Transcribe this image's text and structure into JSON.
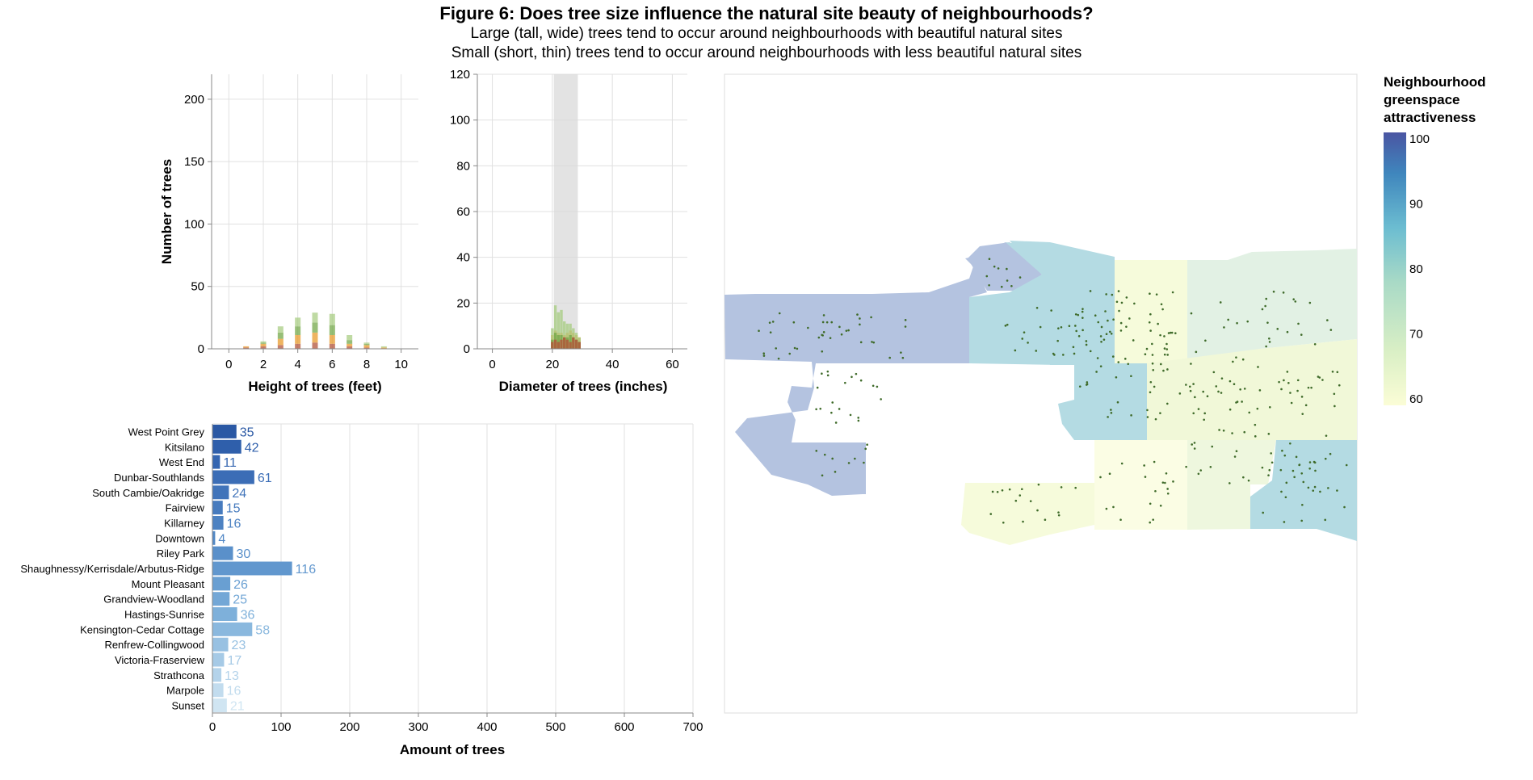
{
  "figure": {
    "title": "Figure 6: Does tree size influence the natural site beauty of neighbourhoods?",
    "subtitle_lines": [
      "Large (tall, wide) trees tend to occur around neighbourhoods with beautiful natural sites",
      "Small (short, thin) trees tend to occur around neighbourhoods with less beautiful natural sites"
    ]
  },
  "chart_data": [
    {
      "type": "bar",
      "id": "height-histogram",
      "xlabel": "Height of trees (feet)",
      "ylabel": "Number of trees",
      "xlim": [
        -1,
        11
      ],
      "ylim": [
        0,
        220
      ],
      "xticks": [
        0,
        2,
        4,
        6,
        8,
        10
      ],
      "yticks": [
        0,
        50,
        100,
        150,
        200
      ],
      "grid": true,
      "stacked": true,
      "x": [
        1,
        2,
        3,
        4,
        5,
        6,
        7,
        8,
        9
      ],
      "series": [
        {
          "color": "#b3543a",
          "values": [
            1,
            2,
            3,
            4,
            5,
            4,
            2,
            1,
            0
          ]
        },
        {
          "color": "#e89b2c",
          "values": [
            1,
            2,
            5,
            7,
            8,
            7,
            2,
            2,
            1
          ]
        },
        {
          "color": "#74a84a",
          "values": [
            0,
            1,
            5,
            7,
            8,
            8,
            3,
            1,
            0
          ]
        },
        {
          "color": "#a9cd84",
          "values": [
            0,
            1,
            5,
            7,
            8,
            9,
            4,
            1,
            1
          ]
        }
      ],
      "opacity": 0.75
    },
    {
      "type": "bar",
      "id": "diameter-histogram",
      "xlabel": "Diameter of trees (inches)",
      "ylabel": "",
      "xlim": [
        -5,
        65
      ],
      "ylim": [
        0,
        120
      ],
      "xticks": [
        0,
        20,
        40,
        60
      ],
      "yticks": [
        0,
        20,
        40,
        60,
        80,
        100,
        120
      ],
      "grid": true,
      "brush_range": [
        20.5,
        28.5
      ],
      "x": [
        20,
        21,
        22,
        23,
        24,
        25,
        26,
        27,
        28,
        29
      ],
      "series": [
        {
          "color": "#e89b2c",
          "values": [
            6,
            8,
            7,
            7,
            6,
            7,
            8,
            7,
            6,
            5
          ]
        },
        {
          "color": "#a9cd84",
          "values": [
            9,
            19,
            16,
            17,
            12,
            11,
            11,
            9,
            7,
            5
          ]
        },
        {
          "color": "#74a84a",
          "values": [
            4,
            7,
            6,
            6,
            5,
            5,
            6,
            5,
            4,
            3
          ]
        },
        {
          "color": "#b3543a",
          "values": [
            3,
            4,
            3,
            4,
            5,
            4,
            3,
            5,
            4,
            3
          ]
        }
      ],
      "opacity": 0.8
    },
    {
      "type": "bar",
      "id": "neighbourhood-bars",
      "orientation": "horizontal",
      "xlabel": "Amount of trees",
      "xlim": [
        0,
        700
      ],
      "xticks": [
        0,
        100,
        200,
        300,
        400,
        500,
        600,
        700
      ],
      "grid": true,
      "categories": [
        "West Point Grey",
        "Kitsilano",
        "West End",
        "Dunbar-Southlands",
        "South Cambie/Oakridge",
        "Fairview",
        "Killarney",
        "Downtown",
        "Riley Park",
        "Shaughnessy/Kerrisdale/Arbutus-Ridge",
        "Mount Pleasant",
        "Grandview-Woodland",
        "Hastings-Sunrise",
        "Kensington-Cedar Cottage",
        "Renfrew-Collingwood",
        "Victoria-Fraserview",
        "Strathcona",
        "Marpole",
        "Sunset"
      ],
      "values": [
        35,
        42,
        11,
        61,
        24,
        15,
        16,
        4,
        30,
        116,
        26,
        25,
        36,
        58,
        23,
        17,
        13,
        16,
        21
      ],
      "labels": [
        "35",
        "42",
        "11",
        "61",
        "24",
        "15",
        "16",
        "4",
        "30",
        "116",
        "26",
        "25",
        "36",
        "58",
        "23",
        "17",
        "13",
        "16",
        "21"
      ],
      "colors": [
        "#2a58a4",
        "#2f5fab",
        "#3566b1",
        "#3b6db6",
        "#4174ba",
        "#477bbe",
        "#4d82c2",
        "#5389c6",
        "#5a90ca",
        "#6197ce",
        "#699fd2",
        "#73a7d6",
        "#7eb0da",
        "#8ab8de",
        "#98c1e2",
        "#a6cae6",
        "#b4d3ea",
        "#c2dcee",
        "#d0e5f2"
      ]
    },
    {
      "type": "heatmap",
      "id": "neighbourhood-map",
      "description_legend": "Neighbourhood greenspace attractiveness",
      "legend_title_lines": [
        "Neighbourhood",
        "greenspace",
        "attractiveness"
      ],
      "legend_placement": "right",
      "color_range": [
        60,
        100
      ],
      "legend_ticks": [
        "100",
        "90",
        "80",
        "70",
        "60"
      ],
      "color_stops": [
        "#fbfdd6",
        "#d9efc5",
        "#a9dac6",
        "#6cbdd1",
        "#3f86bd",
        "#4a55a2"
      ]
    }
  ]
}
